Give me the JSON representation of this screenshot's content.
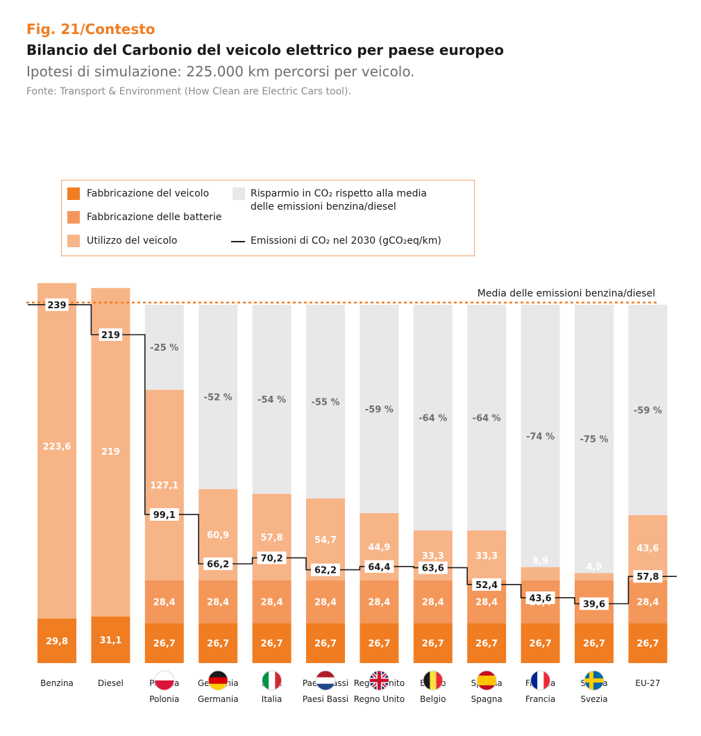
{
  "header": {
    "fig_label": "Fig. 21/Contesto",
    "title": "Bilancio del Carbonio del veicolo elettrico per paese europeo",
    "subtitle": "Ipotesi di simulazione: 225.000 km percorsi per veicolo.",
    "source": "Fonte: Transport & Environment (How Clean are Electric Cars tool)."
  },
  "legend": {
    "vehicle_mfg": "Fabbricazione del veicolo",
    "battery_mfg": "Fabbricazione delle batterie",
    "vehicle_use": "Utilizzo del veicolo",
    "savings_line1": "Risparmio in CO₂ rispetto alla media",
    "savings_line2": "delle emissioni benzina/diesel",
    "emissions_2030": "Emissioni di CO₂ nel 2030 (gCO₂eq/km)"
  },
  "colors": {
    "vehicle_mfg": "#f07d22",
    "battery_mfg": "#f4975a",
    "vehicle_use": "#f7b487",
    "savings": "#e8e8ea",
    "reference_line": "#f07d22",
    "emissions_line": "#1a1a1a"
  },
  "chart_data": {
    "type": "bar",
    "stacked": true,
    "categories": [
      "Benzina",
      "Diesel",
      "Polonia",
      "Germania",
      "Italia",
      "Paesi Bassi",
      "Regno Unito",
      "Belgio",
      "Spagna",
      "Francia",
      "Svezia",
      "EU-27"
    ],
    "flag_icons": [
      "",
      "",
      "flag-poland-icon",
      "flag-germany-icon",
      "flag-italy-icon",
      "flag-netherlands-icon",
      "flag-uk-icon",
      "flag-belgium-icon",
      "flag-spain-icon",
      "flag-france-icon",
      "flag-sweden-icon",
      ""
    ],
    "series": [
      {
        "name": "Fabbricazione del veicolo",
        "values": [
          29.8,
          31.1,
          26.7,
          26.7,
          26.7,
          26.7,
          26.7,
          26.7,
          26.7,
          26.7,
          26.7,
          26.7
        ],
        "labels": [
          "29,8",
          "31,1",
          "26,7",
          "26,7",
          "26,7",
          "26,7",
          "26,7",
          "26,7",
          "26,7",
          "26,7",
          "26,7",
          "26,7"
        ]
      },
      {
        "name": "Fabbricazione delle batterie",
        "values": [
          0,
          0,
          28.4,
          28.4,
          28.4,
          28.4,
          28.4,
          28.4,
          28.4,
          28.4,
          28.4,
          28.4
        ],
        "labels": [
          "",
          "",
          "28,4",
          "28,4",
          "28,4",
          "28,4",
          "28,4",
          "28,4",
          "28,4",
          "28,4",
          "28,4",
          "28,4"
        ]
      },
      {
        "name": "Utilizzo del veicolo",
        "values": [
          223.6,
          219,
          127.1,
          60.9,
          57.8,
          54.7,
          44.9,
          33.3,
          33.3,
          8.9,
          4.9,
          43.6
        ],
        "labels": [
          "223,6",
          "219",
          "127,1",
          "60,9",
          "57,8",
          "54,7",
          "44,9",
          "33,3",
          "33,3",
          "8,9",
          "4,9",
          "43,6"
        ]
      }
    ],
    "savings_pct": [
      "",
      "",
      "-25 %",
      "-52 %",
      "-54 %",
      "-55 %",
      "-59 %",
      "-64 %",
      "-64 %",
      "-74 %",
      "-75 %",
      "-59 %"
    ],
    "emissions_2030": {
      "name": "Emissioni di CO₂ nel 2030 (gCO₂eq/km)",
      "values": [
        239,
        219,
        99.1,
        66.2,
        70.2,
        62.2,
        64.4,
        63.6,
        52.4,
        43.6,
        39.6,
        57.8
      ],
      "labels": [
        "239",
        "219",
        "99,1",
        "66,2",
        "70,2",
        "62,2",
        "64,4",
        "63,6",
        "52,4",
        "43,6",
        "39,6",
        "57,8"
      ]
    },
    "reference_line": {
      "label": "Media delle emissioni benzina/diesel",
      "value": 239
    },
    "ylim": [
      0,
      260
    ],
    "grid": false,
    "legend_position": "top-left"
  }
}
